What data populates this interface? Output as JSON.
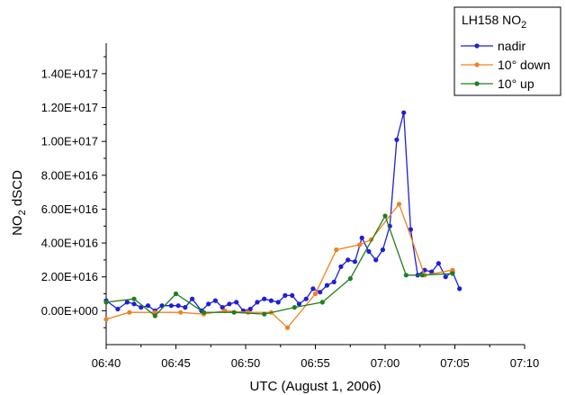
{
  "chart_data": {
    "type": "line",
    "xlabel": "UTC (August 1, 2006)",
    "ylabel": {
      "base": "NO",
      "sub": "2",
      "rest": " dSCD"
    },
    "x_ticks": [
      "06:40",
      "06:45",
      "06:50",
      "06:55",
      "07:00",
      "07:05",
      "07:10"
    ],
    "y_ticks": [
      "0.00E+000",
      "2.00E+016",
      "4.00E+016",
      "6.00E+016",
      "8.00E+016",
      "1.00E+017",
      "1.20E+017",
      "1.40E+017"
    ],
    "xlim": [
      "06:40",
      "07:10"
    ],
    "ylim": [
      -2e+16,
      1.58e+17
    ],
    "legend": {
      "title": "LH158 NO",
      "title_sub": "2",
      "placement": "top-right"
    },
    "series": [
      {
        "name": "nadir",
        "color": "#1f1fd6",
        "points": [
          [
            "06:40:00",
            6000000000000000.0
          ],
          [
            "06:40:50",
            1000000000000000.0
          ],
          [
            "06:41:30",
            5000000000000000.0
          ],
          [
            "06:42:00",
            4000000000000000.0
          ],
          [
            "06:42:30",
            2000000000000000.0
          ],
          [
            "06:43:00",
            3000000000000000.0
          ],
          [
            "06:43:30",
            0.0
          ],
          [
            "06:44:00",
            3000000000000000.0
          ],
          [
            "06:44:40",
            3000000000000000.0
          ],
          [
            "06:45:10",
            3000000000000000.0
          ],
          [
            "06:45:40",
            2000000000000000.0
          ],
          [
            "06:46:10",
            7000000000000000.0
          ],
          [
            "06:46:50",
            0.0
          ],
          [
            "06:47:20",
            4000000000000000.0
          ],
          [
            "06:47:50",
            6000000000000000.0
          ],
          [
            "06:48:20",
            2000000000000000.0
          ],
          [
            "06:48:50",
            4000000000000000.0
          ],
          [
            "06:49:20",
            5000000000000000.0
          ],
          [
            "06:49:50",
            0.0
          ],
          [
            "06:50:20",
            1000000000000000.0
          ],
          [
            "06:50:50",
            5000000000000000.0
          ],
          [
            "06:51:20",
            7000000000000000.0
          ],
          [
            "06:51:50",
            6000000000000000.0
          ],
          [
            "06:52:20",
            5000000000000000.0
          ],
          [
            "06:52:50",
            9000000000000000.0
          ],
          [
            "06:53:20",
            9000000000000000.0
          ],
          [
            "06:53:50",
            4000000000000000.0
          ],
          [
            "06:54:20",
            7000000000000000.0
          ],
          [
            "06:54:50",
            1.3e+16
          ],
          [
            "06:55:20",
            1.1e+16
          ],
          [
            "06:55:50",
            1.5e+16
          ],
          [
            "06:56:20",
            1.7e+16
          ],
          [
            "06:56:50",
            2.6e+16
          ],
          [
            "06:57:20",
            3e+16
          ],
          [
            "06:57:50",
            2.9e+16
          ],
          [
            "06:58:20",
            4.3e+16
          ],
          [
            "06:58:50",
            3.5e+16
          ],
          [
            "06:59:20",
            3e+16
          ],
          [
            "06:59:50",
            3.6e+16
          ],
          [
            "07:00:20",
            5e+16
          ],
          [
            "07:00:50",
            1.01e+17
          ],
          [
            "07:01:20",
            1.17e+17
          ],
          [
            "07:01:50",
            4.8e+16
          ],
          [
            "07:02:20",
            2.1e+16
          ],
          [
            "07:02:50",
            2.4e+16
          ],
          [
            "07:03:20",
            2.3e+16
          ],
          [
            "07:03:50",
            2.8e+16
          ],
          [
            "07:04:20",
            2e+16
          ],
          [
            "07:04:50",
            2.3e+16
          ],
          [
            "07:05:20",
            1.3e+16
          ]
        ]
      },
      {
        "name": "10° down",
        "color": "#f0801e",
        "points": [
          [
            "06:40:00",
            -5000000000000000.0
          ],
          [
            "06:41:40",
            -1000000000000000.0
          ],
          [
            "06:43:30",
            -1000000000000000.0
          ],
          [
            "06:45:20",
            -1000000000000000.0
          ],
          [
            "06:47:00",
            -2000000000000000.0
          ],
          [
            "06:48:30",
            0.0
          ],
          [
            "06:50:10",
            -1000000000000000.0
          ],
          [
            "06:51:50",
            -1000000000000000.0
          ],
          [
            "06:53:00",
            -1e+16
          ],
          [
            "06:55:00",
            1e+16
          ],
          [
            "06:56:30",
            3.6e+16
          ],
          [
            "06:58:10",
            3.9e+16
          ],
          [
            "06:59:00",
            4.2e+16
          ],
          [
            "07:01:00",
            6.3e+16
          ],
          [
            "07:02:50",
            2.1e+16
          ],
          [
            "07:04:50",
            2.4e+16
          ]
        ]
      },
      {
        "name": "10° up",
        "color": "#1f7f1f",
        "points": [
          [
            "06:40:00",
            5000000000000000.0
          ],
          [
            "06:42:00",
            7000000000000000.0
          ],
          [
            "06:43:30",
            -3000000000000000.0
          ],
          [
            "06:45:00",
            1e+16
          ],
          [
            "06:47:00",
            -1000000000000000.0
          ],
          [
            "06:49:10",
            -1000000000000000.0
          ],
          [
            "06:51:20",
            -2000000000000000.0
          ],
          [
            "06:53:30",
            2000000000000000.0
          ],
          [
            "06:55:30",
            5000000000000000.0
          ],
          [
            "06:57:30",
            1.9e+16
          ],
          [
            "07:00:00",
            5.6e+16
          ],
          [
            "07:01:30",
            2.1e+16
          ],
          [
            "07:02:40",
            2.1e+16
          ],
          [
            "07:04:50",
            2.2e+16
          ]
        ]
      }
    ]
  }
}
